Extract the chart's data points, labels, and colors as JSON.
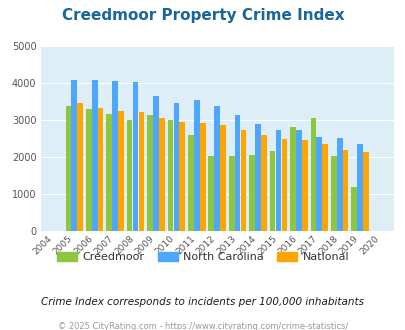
{
  "title": "Creedmoor Property Crime Index",
  "years": [
    2004,
    2005,
    2006,
    2007,
    2008,
    2009,
    2010,
    2011,
    2012,
    2013,
    2014,
    2015,
    2016,
    2017,
    2018,
    2019,
    2020
  ],
  "creedmoor": [
    null,
    3380,
    3310,
    3170,
    3000,
    3130,
    3000,
    2600,
    2030,
    2020,
    2060,
    2160,
    2820,
    3060,
    2040,
    1200,
    null
  ],
  "north_carolina": [
    null,
    4080,
    4090,
    4070,
    4040,
    3660,
    3450,
    3550,
    3380,
    3130,
    2900,
    2730,
    2730,
    2530,
    2510,
    2360,
    null
  ],
  "national": [
    null,
    3450,
    3340,
    3250,
    3230,
    3050,
    2960,
    2910,
    2880,
    2720,
    2600,
    2490,
    2450,
    2360,
    2200,
    2140,
    null
  ],
  "creedmoor_color": "#8dc63f",
  "nc_color": "#4da6ff",
  "national_color": "#ffa500",
  "bg_color": "#ddeef6",
  "ylim": [
    0,
    5000
  ],
  "yticks": [
    0,
    1000,
    2000,
    3000,
    4000,
    5000
  ],
  "subtitle": "Crime Index corresponds to incidents per 100,000 inhabitants",
  "footer": "© 2025 CityRating.com - https://www.cityrating.com/crime-statistics/",
  "title_color": "#1a6699",
  "subtitle_color": "#1a1a1a",
  "footer_color": "#999999",
  "legend_text_color": "#333333"
}
